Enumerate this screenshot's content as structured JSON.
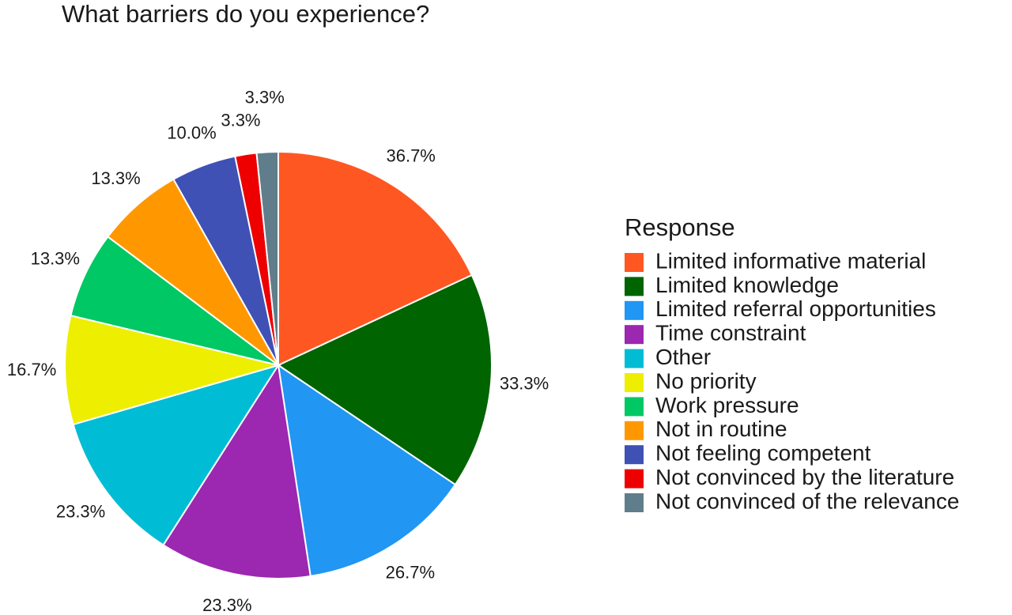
{
  "chart_data": {
    "type": "pie",
    "title": "What barriers do you experience?",
    "legend_title": "Response",
    "categories": [
      "Limited informative material",
      "Limited knowledge",
      "Limited referral opportunities",
      "Time constraint",
      "Other",
      "No priority",
      "Work pressure",
      "Not in routine",
      "Not feeling competent",
      "Not convinced by the literature",
      "Not convinced of the relevance"
    ],
    "values": [
      36.7,
      33.3,
      26.7,
      23.3,
      23.3,
      16.7,
      13.3,
      13.3,
      10.0,
      3.3,
      3.3
    ],
    "value_labels": [
      "36.7%",
      "33.3%",
      "26.7%",
      "23.3%",
      "23.3%",
      "16.7%",
      "13.3%",
      "13.3%",
      "10.0%",
      "3.3%",
      "3.3%"
    ],
    "colors": [
      "#ff5722",
      "#006400",
      "#2196f3",
      "#9c27b0",
      "#00bcd4",
      "#eeee00",
      "#00c864",
      "#ff9800",
      "#3f51b5",
      "#ee0000",
      "#607d8b"
    ],
    "legend_position": "right"
  }
}
